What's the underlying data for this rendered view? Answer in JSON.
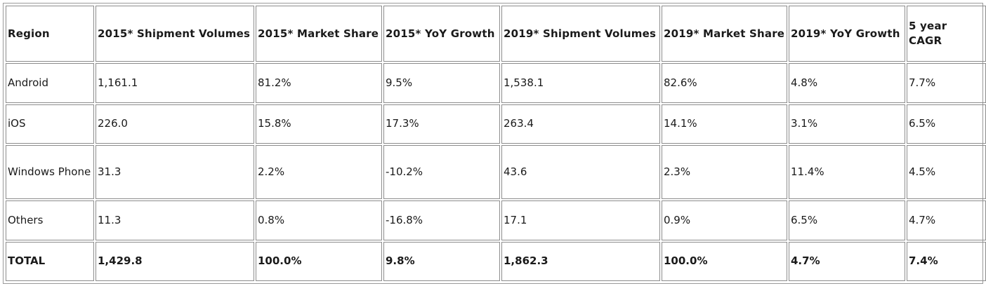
{
  "chart_data": {
    "type": "table",
    "columns": [
      "Region",
      "2015* Shipment Volumes",
      "2015* Market Share",
      "2015* YoY Growth",
      "2019* Shipment Volumes",
      "2019* Market Share",
      "2019* YoY Growth",
      "5 year CAGR"
    ],
    "rows": [
      [
        "Android",
        "1,161.1",
        "81.2%",
        "9.5%",
        "1,538.1",
        "82.6%",
        "4.8%",
        "7.7%"
      ],
      [
        "iOS",
        "226.0",
        "15.8%",
        "17.3%",
        "263.4",
        "14.1%",
        "3.1%",
        "6.5%"
      ],
      [
        "Windows Phone",
        "31.3",
        "2.2%",
        "-10.2%",
        "43.6",
        "2.3%",
        "11.4%",
        "4.5%"
      ],
      [
        "Others",
        "11.3",
        "0.8%",
        "-16.8%",
        "17.1",
        "0.9%",
        "6.5%",
        "4.7%"
      ]
    ],
    "total": [
      "TOTAL",
      "1,429.8",
      "100.0%",
      "9.8%",
      "1,862.3",
      "100.0%",
      "4.7%",
      "7.4%"
    ]
  }
}
